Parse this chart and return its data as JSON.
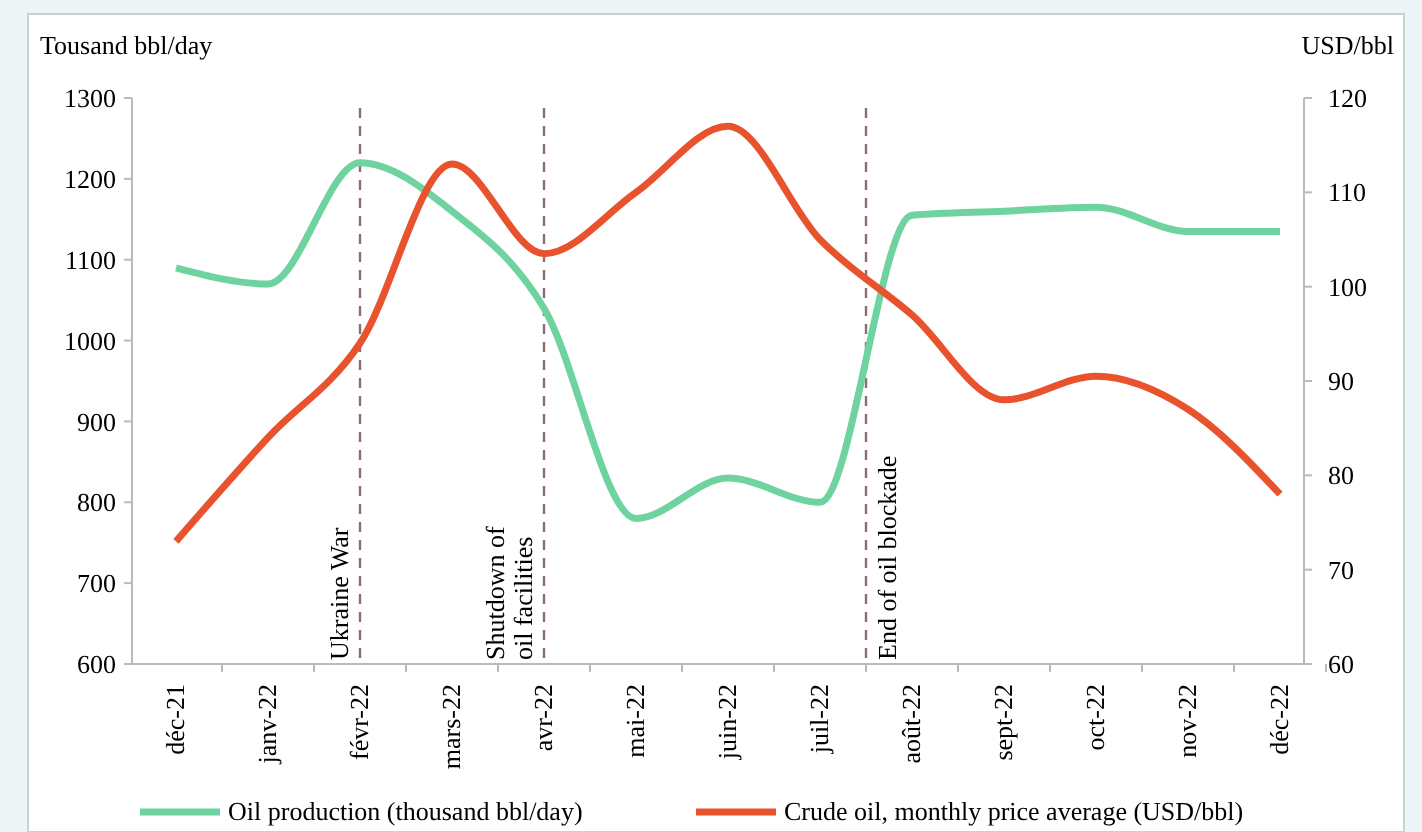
{
  "chart_data": {
    "type": "line",
    "ylabel": "Tousand bbl/day",
    "y2label": "USD/bbl",
    "categories": [
      "déc-21",
      "janv-22",
      "févr-22",
      "mars-22",
      "avr-22",
      "mai-22",
      "juin-22",
      "juil-22",
      "août-22",
      "sept-22",
      "oct-22",
      "nov-22",
      "déc-22"
    ],
    "series": [
      {
        "name": "Oil production (thousand bbl/day)",
        "color": "#6fd3a0",
        "values": [
          1090,
          1070,
          1220,
          1160,
          1040,
          780,
          830,
          800,
          1155,
          1160,
          1165,
          1135,
          1135
        ]
      },
      {
        "name": "Crude oil, monthly price average (USD/bbl)",
        "color": "#e8532e",
        "axis": "y2",
        "values": [
          73,
          84,
          94,
          113,
          103.5,
          110,
          117,
          105,
          97,
          88,
          90.5,
          87,
          78
        ]
      }
    ],
    "ylim": [
      600,
      1300
    ],
    "yticks": [
      600,
      700,
      800,
      900,
      1000,
      1100,
      1200,
      1300
    ],
    "y2lim": [
      60,
      120
    ],
    "y2ticks": [
      60,
      70,
      80,
      90,
      100,
      110,
      120
    ],
    "ref_lines": [
      {
        "axis": "x",
        "value": "févr-22",
        "label": "Ukraine War",
        "color": "#8b6f6f",
        "line_style": "dashed"
      },
      {
        "axis": "x",
        "value": "avr-22",
        "label": "Shutdown of\noil facilities",
        "color": "#8b6f6f",
        "line_style": "dashed"
      }
    ],
    "annotations": [
      "End of oil blockade"
    ],
    "grid": false,
    "legend": "bottom",
    "marker": "none",
    "line_style": "solid"
  }
}
